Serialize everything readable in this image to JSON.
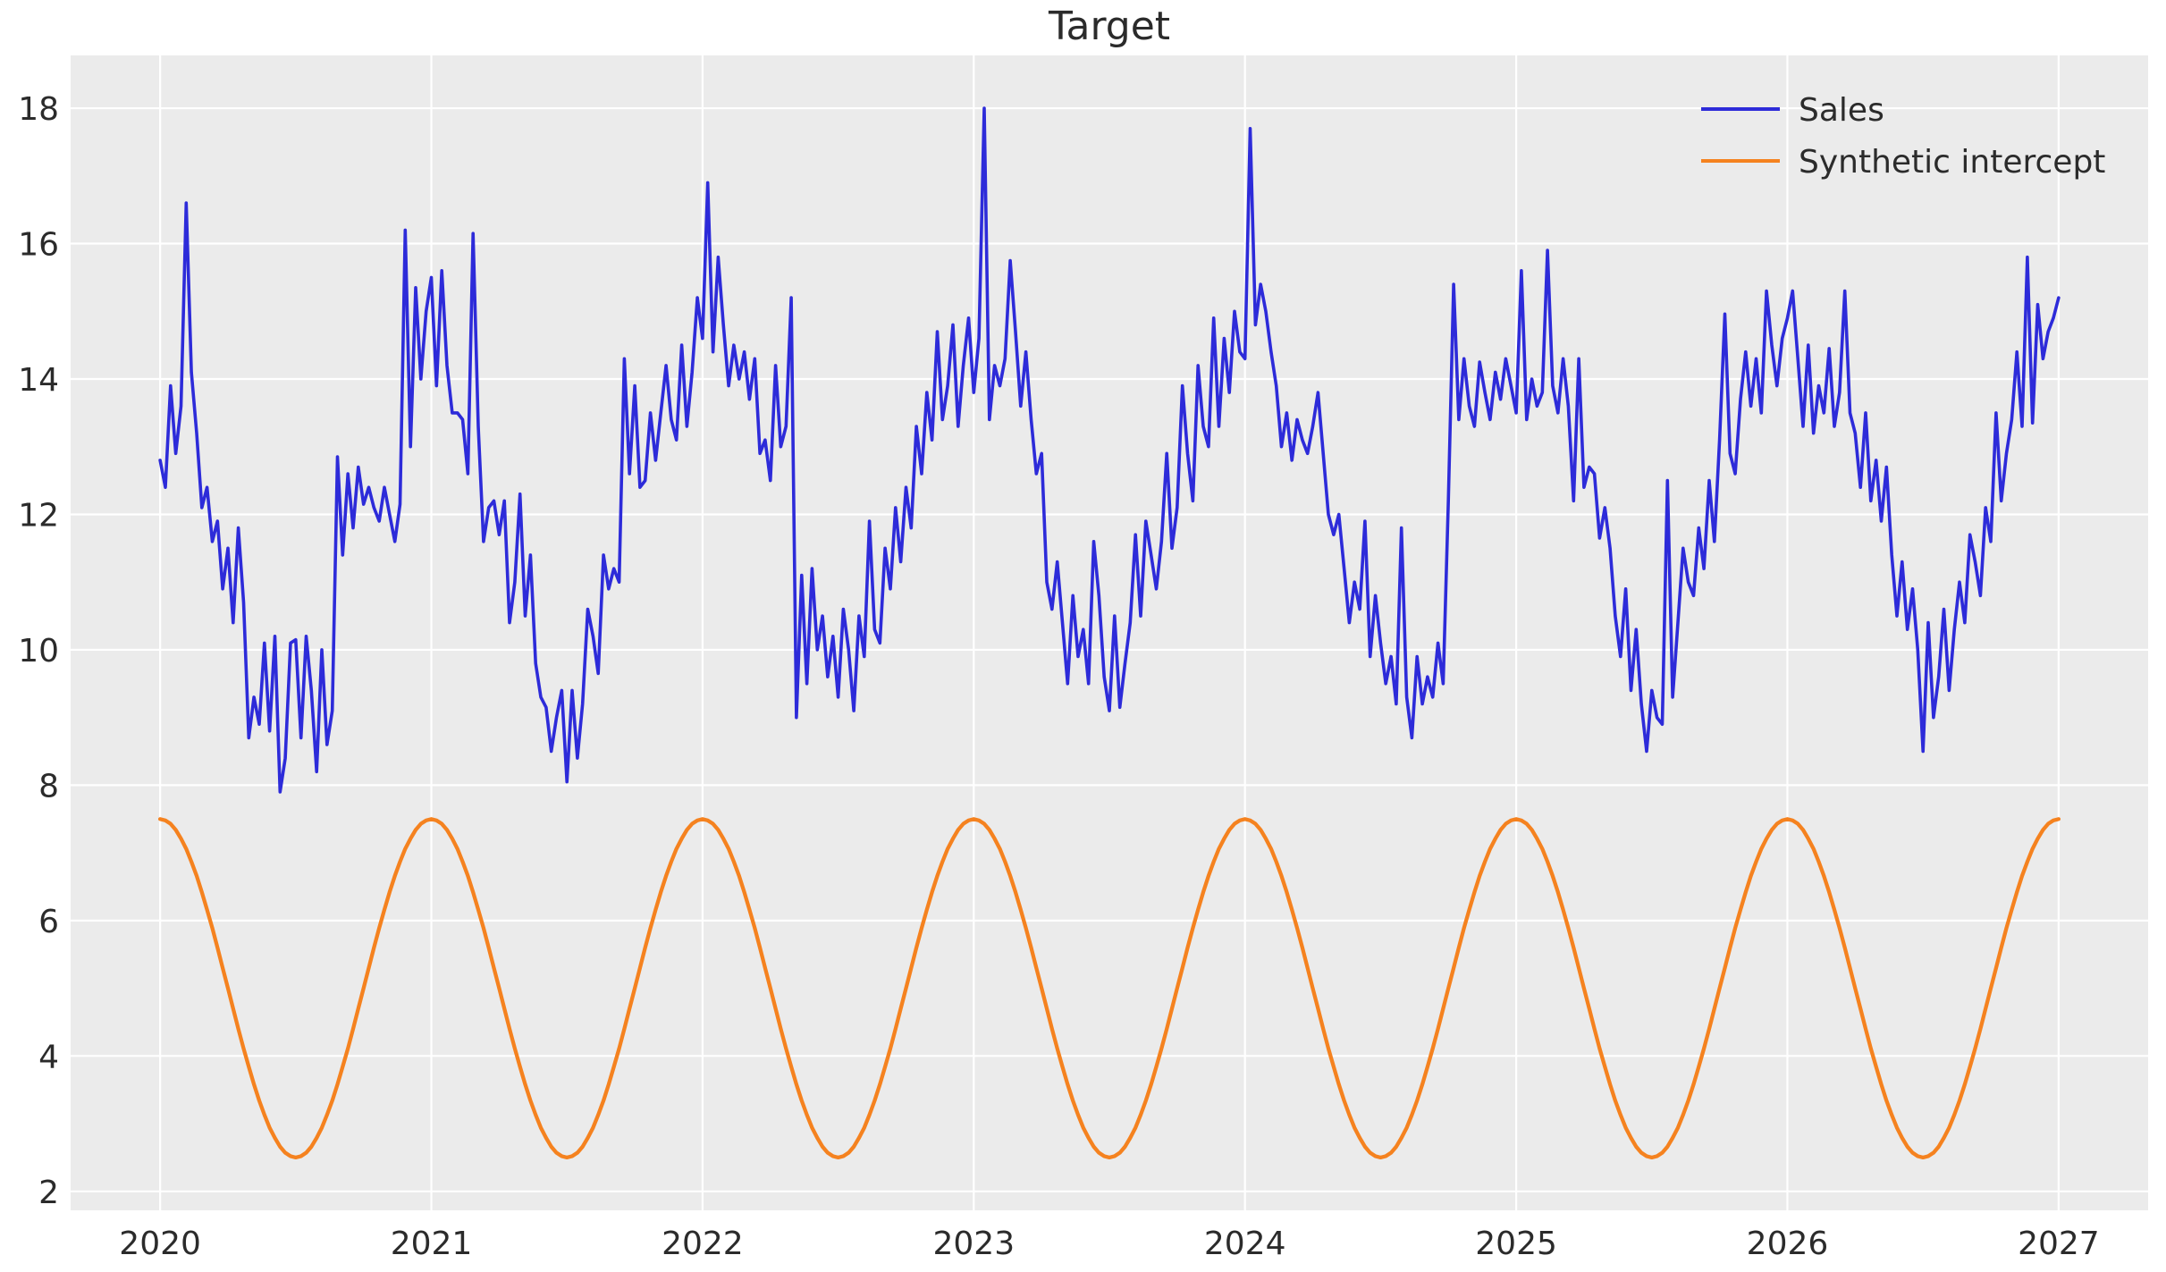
{
  "figure": {
    "background": "#ffffff",
    "plot_background": "#ebebeb",
    "grid_color": "#ffffff",
    "text_color": "#2b2b2b"
  },
  "chart_data": {
    "type": "line",
    "title": "Target",
    "xlabel": "",
    "ylabel": "",
    "grid": true,
    "legend_position": "upper right",
    "x_ticks": [
      2020,
      2021,
      2022,
      2023,
      2024,
      2025,
      2026,
      2027
    ],
    "y_ticks": [
      2,
      4,
      6,
      8,
      10,
      12,
      14,
      16,
      18
    ],
    "xlim": [
      2019.67,
      2027.33
    ],
    "ylim": [
      1.72,
      18.78
    ],
    "x_start": 2020,
    "x_step": 0.01923076923,
    "n_points": 365,
    "series": [
      {
        "name": "Sales",
        "color": "#2d2bd9",
        "width": 3.6,
        "y": [
          12.8,
          12.4,
          13.9,
          12.9,
          13.6,
          16.6,
          14.1,
          13.2,
          12.1,
          12.4,
          11.6,
          11.9,
          10.9,
          11.5,
          10.4,
          11.8,
          10.7,
          8.7,
          9.3,
          8.9,
          10.1,
          8.8,
          10.2,
          7.9,
          8.4,
          10.1,
          10.15,
          8.7,
          10.2,
          9.4,
          8.2,
          10.0,
          8.6,
          9.1,
          12.85,
          11.4,
          12.6,
          11.8,
          12.7,
          12.15,
          12.4,
          12.1,
          11.9,
          12.4,
          12.0,
          11.6,
          12.15,
          16.2,
          13.0,
          15.35,
          14.0,
          15.0,
          15.5,
          13.9,
          15.6,
          14.2,
          13.5,
          13.5,
          13.4,
          12.6,
          16.15,
          13.3,
          11.6,
          12.1,
          12.2,
          11.7,
          12.2,
          10.4,
          11.0,
          12.3,
          10.5,
          11.4,
          9.8,
          9.3,
          9.15,
          8.5,
          9.0,
          9.4,
          8.05,
          9.4,
          8.4,
          9.2,
          10.6,
          10.2,
          9.65,
          11.4,
          10.9,
          11.2,
          11.0,
          14.3,
          12.6,
          13.9,
          12.4,
          12.5,
          13.5,
          12.8,
          13.5,
          14.2,
          13.4,
          13.1,
          14.5,
          13.3,
          14.1,
          15.2,
          14.6,
          16.9,
          14.4,
          15.8,
          14.8,
          13.9,
          14.5,
          14.0,
          14.4,
          13.7,
          14.3,
          12.9,
          13.1,
          12.5,
          14.2,
          13.0,
          13.3,
          15.2,
          9.0,
          11.1,
          9.5,
          11.2,
          10.0,
          10.5,
          9.6,
          10.2,
          9.3,
          10.6,
          10.0,
          9.1,
          10.5,
          9.9,
          11.9,
          10.3,
          10.1,
          11.5,
          10.9,
          12.1,
          11.3,
          12.4,
          11.8,
          13.3,
          12.6,
          13.8,
          13.1,
          14.7,
          13.4,
          13.9,
          14.8,
          13.3,
          14.2,
          14.9,
          13.8,
          14.6,
          18.0,
          13.4,
          14.2,
          13.9,
          14.3,
          15.75,
          14.7,
          13.6,
          14.4,
          13.4,
          12.6,
          12.9,
          11.0,
          10.6,
          11.3,
          10.4,
          9.5,
          10.8,
          9.9,
          10.3,
          9.5,
          11.6,
          10.8,
          9.6,
          9.1,
          10.5,
          9.15,
          9.8,
          10.4,
          11.7,
          10.5,
          11.9,
          11.4,
          10.9,
          11.6,
          12.9,
          11.5,
          12.1,
          13.9,
          12.9,
          12.2,
          14.2,
          13.3,
          13.0,
          14.9,
          13.3,
          14.6,
          13.8,
          15.0,
          14.4,
          14.3,
          17.7,
          14.8,
          15.4,
          15.0,
          14.4,
          13.9,
          13.0,
          13.5,
          12.8,
          13.4,
          13.1,
          12.9,
          13.3,
          13.8,
          12.9,
          12.0,
          11.7,
          12.0,
          11.2,
          10.4,
          11.0,
          10.6,
          11.9,
          9.9,
          10.8,
          10.1,
          9.5,
          9.9,
          9.2,
          11.8,
          9.3,
          8.7,
          9.9,
          9.2,
          9.6,
          9.3,
          10.1,
          9.5,
          12.2,
          15.4,
          13.4,
          14.3,
          13.6,
          13.3,
          14.25,
          13.8,
          13.4,
          14.1,
          13.7,
          14.3,
          13.9,
          13.5,
          15.6,
          13.4,
          14.0,
          13.6,
          13.8,
          15.9,
          13.9,
          13.5,
          14.3,
          13.6,
          12.2,
          14.3,
          12.4,
          12.7,
          12.6,
          11.65,
          12.1,
          11.5,
          10.5,
          9.9,
          10.9,
          9.4,
          10.3,
          9.2,
          8.5,
          9.4,
          9.0,
          8.9,
          12.5,
          9.3,
          10.4,
          11.5,
          11.0,
          10.8,
          11.8,
          11.2,
          12.5,
          11.6,
          13.1,
          14.96,
          12.9,
          12.6,
          13.7,
          14.4,
          13.6,
          14.3,
          13.5,
          15.3,
          14.5,
          13.9,
          14.6,
          14.9,
          15.3,
          14.3,
          13.3,
          14.5,
          13.2,
          13.9,
          13.5,
          14.45,
          13.3,
          13.8,
          15.3,
          13.5,
          13.2,
          12.4,
          13.5,
          12.2,
          12.8,
          11.9,
          12.7,
          11.4,
          10.5,
          11.3,
          10.3,
          10.9,
          10.0,
          8.5,
          10.4,
          9.0,
          9.6,
          10.6,
          9.4,
          10.3,
          11.0,
          10.4,
          11.7,
          11.3,
          10.8,
          12.1,
          11.6,
          13.5,
          12.2,
          12.9,
          13.4,
          14.4,
          13.3,
          15.8,
          13.35,
          15.1,
          14.3,
          14.7,
          14.9,
          15.2
        ]
      },
      {
        "name": "Synthetic intercept",
        "color": "#f5821f",
        "width": 4.3,
        "cycle": [
          7.5,
          7.48,
          7.43,
          7.34,
          7.21,
          7.06,
          6.87,
          6.66,
          6.42,
          6.16,
          5.89,
          5.6,
          5.3,
          5.0,
          4.7,
          4.4,
          4.11,
          3.84,
          3.58,
          3.34,
          3.13,
          2.94,
          2.79,
          2.66,
          2.57,
          2.52,
          2.5,
          2.52,
          2.57,
          2.66,
          2.79,
          2.94,
          3.13,
          3.34,
          3.58,
          3.84,
          4.11,
          4.4,
          4.7,
          5.0,
          5.3,
          5.6,
          5.89,
          6.16,
          6.42,
          6.66,
          6.87,
          7.06,
          7.21,
          7.34,
          7.43,
          7.48
        ]
      }
    ]
  }
}
